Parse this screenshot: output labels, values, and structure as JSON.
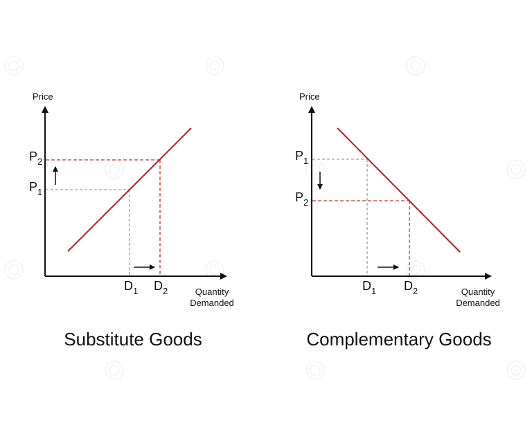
{
  "watermark_icon": "watermark-ring-icon",
  "colors": {
    "curve": "#b21f1f",
    "dashed_red": "#c0392b",
    "dashed_gray": "#8a8a8a",
    "axis": "#111111"
  },
  "panels": [
    {
      "caption": "Substitute Goods",
      "y_axis_label": "Price",
      "x_axis_label_line1": "Quantity",
      "x_axis_label_line2": "Demanded",
      "p_high": {
        "main": "P",
        "sub": "2"
      },
      "p_low": {
        "main": "P",
        "sub": "1"
      },
      "d_left": {
        "main": "D",
        "sub": "1"
      },
      "d_right": {
        "main": "D",
        "sub": "2"
      },
      "price_arrow": "up-arrow-icon",
      "quantity_arrow": "right-arrow-icon"
    },
    {
      "caption": "Complementary Goods",
      "y_axis_label": "Price",
      "x_axis_label_line1": "Quantity",
      "x_axis_label_line2": "Demanded",
      "p_high": {
        "main": "P",
        "sub": "1"
      },
      "p_low": {
        "main": "P",
        "sub": "2"
      },
      "d_left": {
        "main": "D",
        "sub": "1"
      },
      "d_right": {
        "main": "D",
        "sub": "2"
      },
      "price_arrow": "down-arrow-icon",
      "quantity_arrow": "right-arrow-icon"
    }
  ]
}
